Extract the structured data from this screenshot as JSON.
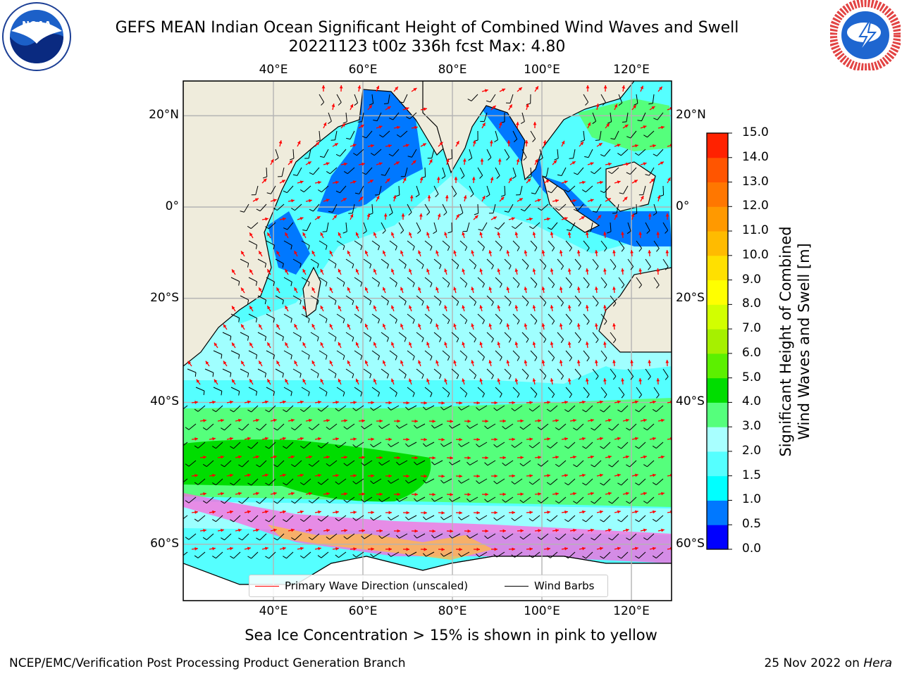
{
  "title_line1": "GEFS MEAN Indian Ocean Significant Height of Combined Wind Waves and Swell",
  "title_line2": "20221123 t00z 336h fcst   Max: 4.80",
  "logos": {
    "left": "noaa-logo",
    "right": "national-weather-service-logo"
  },
  "map": {
    "lon_ticks": [
      "40°E",
      "60°E",
      "80°E",
      "100°E",
      "120°E"
    ],
    "lat_ticks_left": [
      "20°N",
      "0°",
      "20°S",
      "40°S",
      "60°S"
    ],
    "lat_ticks_right": [
      "20°N",
      "0°",
      "20°S",
      "40°S",
      "60°S"
    ],
    "colors": {
      "land": "#efecdc",
      "coast": "#000000",
      "wave_arrow": "#ff0000",
      "wind_barb": "#000000",
      "grid": "#b4b4b4"
    }
  },
  "legend": {
    "wave_label": "Primary Wave Direction (unscaled)",
    "barb_label": "Wind Barbs"
  },
  "colorbar": {
    "label_line1": "Significant Height of Combined",
    "label_line2": "Wind Waves and Swell [m]",
    "ticks": [
      "0.0",
      "0.5",
      "1.0",
      "1.5",
      "2.0",
      "3.0",
      "4.0",
      "5.0",
      "6.0",
      "7.0",
      "8.0",
      "9.0",
      "10.0",
      "11.0",
      "12.0",
      "13.0",
      "14.0",
      "15.0"
    ],
    "colors": [
      "#0000ff",
      "#0078ff",
      "#00ffff",
      "#55ffff",
      "#a8ffff",
      "#55ff7c",
      "#00dd00",
      "#5cf000",
      "#a6f000",
      "#d2ff00",
      "#ffff00",
      "#ffe000",
      "#ffbb00",
      "#ff9900",
      "#ff7700",
      "#ff5500",
      "#ff2200"
    ]
  },
  "ice_note": "Sea Ice Concentration > 15% is shown in pink to yellow",
  "footer": {
    "left": "NCEP/EMC/Verification Post Processing Product Generation Branch",
    "right_date": "25 Nov 2022 on ",
    "right_host": "Hera"
  }
}
